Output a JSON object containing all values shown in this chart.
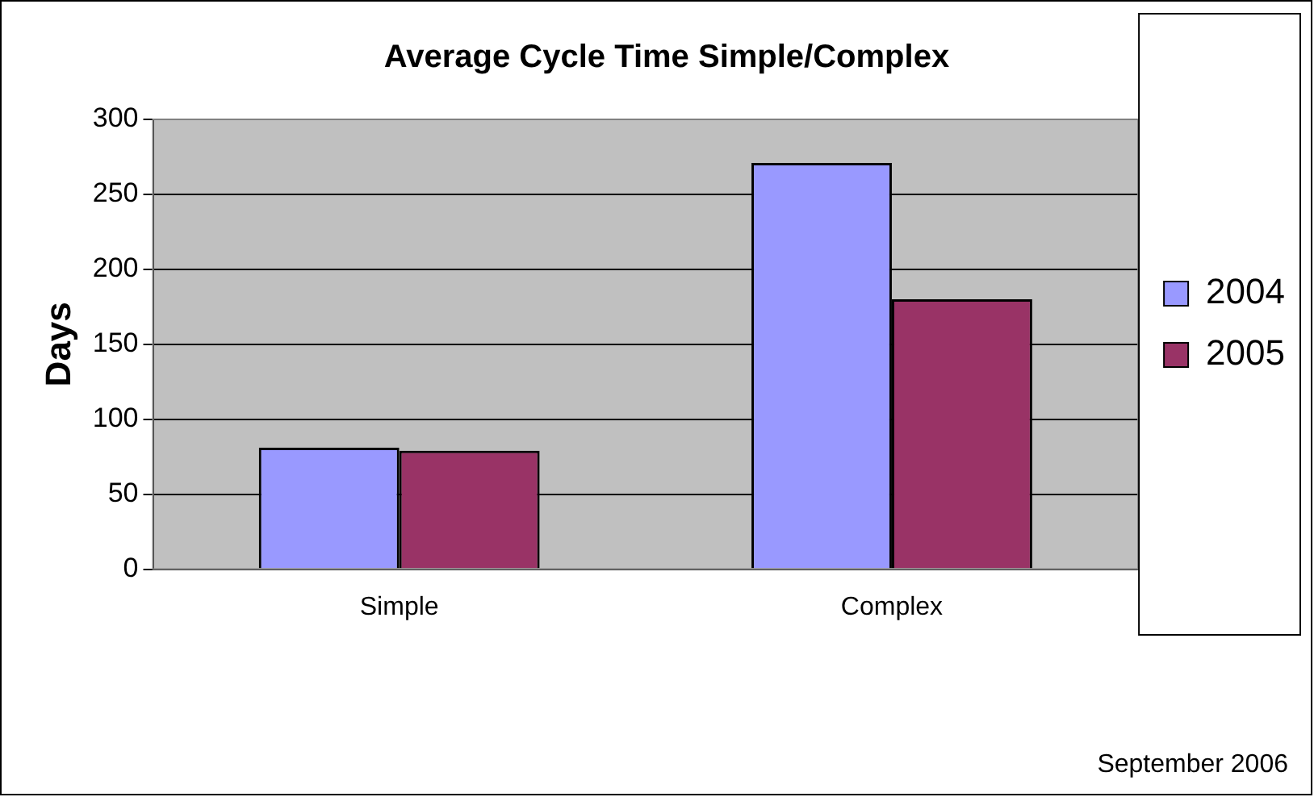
{
  "chart_data": {
    "type": "bar",
    "title": "Average Cycle Time Simple/Complex",
    "ylabel": "Days",
    "categories": [
      "Simple",
      "Complex"
    ],
    "series": [
      {
        "name": "2004",
        "color": "#9999ff",
        "values": [
          81,
          271
        ]
      },
      {
        "name": "2005",
        "color": "#993366",
        "values": [
          79,
          180
        ]
      }
    ],
    "ylim": [
      0,
      300
    ],
    "yticks": [
      0,
      50,
      100,
      150,
      200,
      250,
      300
    ],
    "grid": "y",
    "legend": "right",
    "annotations": [
      "September 2006"
    ]
  }
}
